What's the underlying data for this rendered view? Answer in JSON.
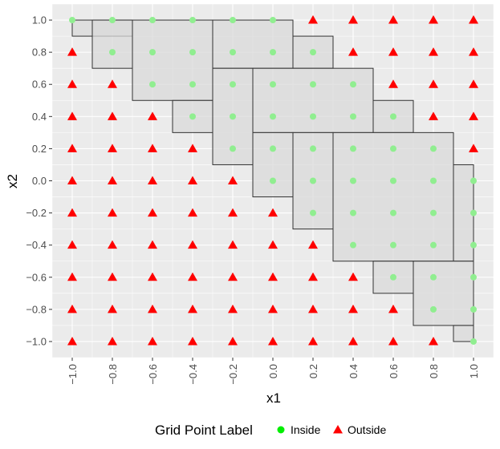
{
  "chart_data": {
    "type": "scatter",
    "xlabel": "x1",
    "ylabel": "x2",
    "xlim": [
      -1.1,
      1.1
    ],
    "ylim": [
      -1.1,
      1.1
    ],
    "grid": true,
    "x_ticks": [
      "−1.0",
      "−0.8",
      "−0.6",
      "−0.4",
      "−0.2",
      "0.0",
      "0.2",
      "0.4",
      "0.6",
      "0.8",
      "1.0"
    ],
    "y_ticks": [
      "1.0",
      "0.8",
      "0.6",
      "0.4",
      "0.2",
      "0.0",
      "−0.2",
      "−0.4",
      "−0.6",
      "−0.8",
      "−1.0"
    ],
    "x_tick_values": [
      -1.0,
      -0.8,
      -0.6,
      -0.4,
      -0.2,
      0.0,
      0.2,
      0.4,
      0.6,
      0.8,
      1.0
    ],
    "y_tick_values": [
      1.0,
      0.8,
      0.6,
      0.4,
      0.2,
      0.0,
      -0.2,
      -0.4,
      -0.6,
      -0.8,
      -1.0
    ],
    "legend": {
      "title": "Grid Point Label",
      "position": "bottom",
      "entries": [
        {
          "label": "Inside",
          "shape": "circle",
          "color": "#00ee00"
        },
        {
          "label": "Outside",
          "shape": "triangle",
          "color": "#ff0000"
        }
      ]
    },
    "colors": {
      "inside": "#00ee00",
      "inside_in_box": "#90ee90",
      "outside": "#ff0000",
      "panel": "#ebebeb",
      "box_fill": "#d9d9d9",
      "box_stroke": "#333333"
    },
    "grid_points": {
      "x_values": [
        -1.0,
        -0.8,
        -0.6,
        -0.4,
        -0.2,
        0.0,
        0.2,
        0.4,
        0.6,
        0.8,
        1.0
      ],
      "y_values": [
        1.0,
        0.8,
        0.6,
        0.4,
        0.2,
        0.0,
        -0.2,
        -0.4,
        -0.6,
        -0.8,
        -1.0
      ],
      "labels": [
        [
          "I",
          "I",
          "I",
          "I",
          "I",
          "I",
          "O",
          "O",
          "O",
          "O",
          "O"
        ],
        [
          "O",
          "I",
          "I",
          "I",
          "I",
          "I",
          "I",
          "O",
          "O",
          "O",
          "O"
        ],
        [
          "O",
          "O",
          "I",
          "I",
          "I",
          "I",
          "I",
          "I",
          "O",
          "O",
          "O"
        ],
        [
          "O",
          "O",
          "O",
          "I",
          "I",
          "I",
          "I",
          "I",
          "I",
          "O",
          "O"
        ],
        [
          "O",
          "O",
          "O",
          "O",
          "I",
          "I",
          "I",
          "I",
          "I",
          "I",
          "O"
        ],
        [
          "O",
          "O",
          "O",
          "O",
          "O",
          "I",
          "I",
          "I",
          "I",
          "I",
          "I"
        ],
        [
          "O",
          "O",
          "O",
          "O",
          "O",
          "O",
          "I",
          "I",
          "I",
          "I",
          "I"
        ],
        [
          "O",
          "O",
          "O",
          "O",
          "O",
          "O",
          "O",
          "I",
          "I",
          "I",
          "I"
        ],
        [
          "O",
          "O",
          "O",
          "O",
          "O",
          "O",
          "O",
          "O",
          "I",
          "I",
          "I"
        ],
        [
          "O",
          "O",
          "O",
          "O",
          "O",
          "O",
          "O",
          "O",
          "O",
          "I",
          "I"
        ],
        [
          "O",
          "O",
          "O",
          "O",
          "O",
          "O",
          "O",
          "O",
          "O",
          "O",
          "I"
        ]
      ]
    },
    "boxes": [
      {
        "x": [
          -1.0,
          -0.7
        ],
        "y": [
          0.9,
          1.0
        ]
      },
      {
        "x": [
          -0.9,
          -0.7
        ],
        "y": [
          0.7,
          1.0
        ]
      },
      {
        "x": [
          -0.7,
          -0.3
        ],
        "y": [
          0.5,
          1.0
        ]
      },
      {
        "x": [
          -0.3,
          0.1
        ],
        "y": [
          0.7,
          1.0
        ]
      },
      {
        "x": [
          0.1,
          0.3
        ],
        "y": [
          0.7,
          0.9
        ]
      },
      {
        "x": [
          -0.5,
          -0.3
        ],
        "y": [
          0.3,
          0.5
        ]
      },
      {
        "x": [
          -0.3,
          -0.1
        ],
        "y": [
          0.1,
          0.7
        ]
      },
      {
        "x": [
          -0.1,
          0.5
        ],
        "y": [
          0.3,
          0.7
        ]
      },
      {
        "x": [
          0.5,
          0.7
        ],
        "y": [
          0.3,
          0.5
        ]
      },
      {
        "x": [
          -0.1,
          0.1
        ],
        "y": [
          -0.1,
          0.3
        ]
      },
      {
        "x": [
          0.1,
          0.3
        ],
        "y": [
          -0.3,
          0.3
        ]
      },
      {
        "x": [
          0.3,
          0.9
        ],
        "y": [
          -0.5,
          0.3
        ]
      },
      {
        "x": [
          0.9,
          1.0
        ],
        "y": [
          -0.5,
          0.1
        ]
      },
      {
        "x": [
          0.5,
          0.7
        ],
        "y": [
          -0.7,
          -0.5
        ]
      },
      {
        "x": [
          0.7,
          1.0
        ],
        "y": [
          -0.9,
          -0.5
        ]
      },
      {
        "x": [
          0.9,
          1.0
        ],
        "y": [
          -1.0,
          -0.9
        ]
      }
    ]
  }
}
